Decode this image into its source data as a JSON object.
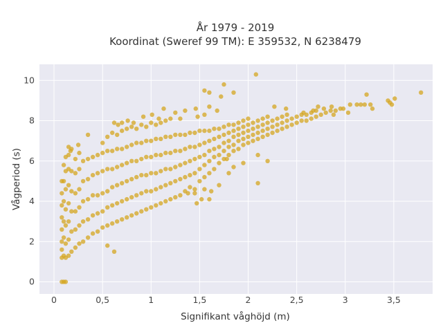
{
  "chart_data": {
    "type": "scatter",
    "title_line1": "År 1979 - 2019",
    "title_line2": "Koordinat (Sweref 99 TM): E 359532, N 6238479",
    "xlabel": "Signifikant våghöjd (m)",
    "ylabel": "Vågperiod (s)",
    "xlim": [
      -0.15,
      3.9
    ],
    "ylim": [
      -0.6,
      10.8
    ],
    "xticks": [
      0,
      0.5,
      1,
      1.5,
      2,
      2.5,
      3,
      3.5
    ],
    "xtick_labels": [
      "0",
      "0,5",
      "1",
      "1,5",
      "2",
      "2,5",
      "3",
      "3,5"
    ],
    "yticks": [
      0,
      2,
      4,
      6,
      8,
      10
    ],
    "ytick_labels": [
      "0",
      "2",
      "4",
      "6",
      "8",
      "10"
    ],
    "grid": true,
    "legend": "none",
    "colors": {
      "marker": "#d4a520",
      "plot_bg": "#e9e9f2",
      "grid": "#ffffff"
    },
    "points": [
      [
        0.08,
        0.0
      ],
      [
        0.1,
        0.0
      ],
      [
        0.12,
        0.0
      ],
      [
        0.08,
        1.2
      ],
      [
        0.08,
        1.6
      ],
      [
        0.08,
        2.0
      ],
      [
        0.08,
        2.6
      ],
      [
        0.08,
        3.2
      ],
      [
        0.08,
        3.8
      ],
      [
        0.08,
        4.4
      ],
      [
        0.08,
        5.0
      ],
      [
        0.1,
        1.3
      ],
      [
        0.1,
        2.2
      ],
      [
        0.1,
        3.0
      ],
      [
        0.1,
        4.0
      ],
      [
        0.1,
        5.0
      ],
      [
        0.1,
        5.8
      ],
      [
        0.12,
        1.2
      ],
      [
        0.12,
        1.9
      ],
      [
        0.12,
        2.8
      ],
      [
        0.12,
        3.6
      ],
      [
        0.12,
        4.6
      ],
      [
        0.12,
        5.5
      ],
      [
        0.12,
        6.2
      ],
      [
        0.15,
        1.3
      ],
      [
        0.15,
        2.1
      ],
      [
        0.15,
        3.0
      ],
      [
        0.15,
        3.9
      ],
      [
        0.15,
        4.8
      ],
      [
        0.15,
        5.6
      ],
      [
        0.15,
        6.3
      ],
      [
        0.18,
        1.5
      ],
      [
        0.18,
        2.5
      ],
      [
        0.18,
        3.5
      ],
      [
        0.18,
        4.5
      ],
      [
        0.18,
        5.5
      ],
      [
        0.18,
        6.6
      ],
      [
        0.22,
        1.7
      ],
      [
        0.22,
        2.6
      ],
      [
        0.22,
        3.5
      ],
      [
        0.22,
        4.4
      ],
      [
        0.22,
        5.4
      ],
      [
        0.22,
        6.1
      ],
      [
        0.26,
        1.9
      ],
      [
        0.26,
        2.8
      ],
      [
        0.26,
        3.7
      ],
      [
        0.26,
        4.6
      ],
      [
        0.26,
        5.6
      ],
      [
        0.26,
        6.4
      ],
      [
        0.3,
        2.0
      ],
      [
        0.3,
        3.0
      ],
      [
        0.3,
        4.0
      ],
      [
        0.3,
        5.0
      ],
      [
        0.3,
        6.0
      ],
      [
        0.35,
        2.2
      ],
      [
        0.35,
        3.1
      ],
      [
        0.35,
        4.1
      ],
      [
        0.35,
        5.1
      ],
      [
        0.35,
        6.1
      ],
      [
        0.4,
        2.4
      ],
      [
        0.4,
        3.3
      ],
      [
        0.4,
        4.3
      ],
      [
        0.4,
        5.3
      ],
      [
        0.4,
        6.2
      ],
      [
        0.45,
        2.5
      ],
      [
        0.45,
        3.4
      ],
      [
        0.45,
        4.3
      ],
      [
        0.45,
        5.4
      ],
      [
        0.45,
        6.3
      ],
      [
        0.5,
        2.7
      ],
      [
        0.5,
        3.5
      ],
      [
        0.5,
        4.4
      ],
      [
        0.5,
        5.5
      ],
      [
        0.5,
        6.4
      ],
      [
        0.5,
        6.9
      ],
      [
        0.55,
        2.8
      ],
      [
        0.55,
        3.7
      ],
      [
        0.55,
        4.5
      ],
      [
        0.55,
        5.6
      ],
      [
        0.55,
        6.5
      ],
      [
        0.55,
        7.2
      ],
      [
        0.6,
        2.9
      ],
      [
        0.6,
        3.8
      ],
      [
        0.6,
        4.7
      ],
      [
        0.6,
        5.6
      ],
      [
        0.6,
        6.5
      ],
      [
        0.6,
        7.4
      ],
      [
        0.65,
        3.0
      ],
      [
        0.65,
        3.9
      ],
      [
        0.65,
        4.8
      ],
      [
        0.65,
        5.7
      ],
      [
        0.65,
        6.6
      ],
      [
        0.65,
        7.3
      ],
      [
        0.7,
        3.1
      ],
      [
        0.7,
        4.0
      ],
      [
        0.7,
        4.9
      ],
      [
        0.7,
        5.8
      ],
      [
        0.7,
        6.6
      ],
      [
        0.7,
        7.5
      ],
      [
        0.75,
        3.2
      ],
      [
        0.75,
        4.1
      ],
      [
        0.75,
        5.0
      ],
      [
        0.75,
        5.9
      ],
      [
        0.75,
        6.7
      ],
      [
        0.75,
        7.6
      ],
      [
        0.8,
        3.3
      ],
      [
        0.8,
        4.2
      ],
      [
        0.8,
        5.1
      ],
      [
        0.8,
        6.0
      ],
      [
        0.8,
        6.8
      ],
      [
        0.8,
        7.7
      ],
      [
        0.85,
        3.4
      ],
      [
        0.85,
        4.3
      ],
      [
        0.85,
        5.2
      ],
      [
        0.85,
        6.0
      ],
      [
        0.85,
        6.9
      ],
      [
        0.85,
        7.6
      ],
      [
        0.9,
        3.5
      ],
      [
        0.9,
        4.4
      ],
      [
        0.9,
        5.3
      ],
      [
        0.9,
        6.1
      ],
      [
        0.9,
        6.9
      ],
      [
        0.9,
        7.8
      ],
      [
        0.95,
        3.6
      ],
      [
        0.95,
        4.5
      ],
      [
        0.95,
        5.3
      ],
      [
        0.95,
        6.2
      ],
      [
        0.95,
        7.0
      ],
      [
        0.95,
        7.7
      ],
      [
        1.0,
        3.7
      ],
      [
        1.0,
        4.5
      ],
      [
        1.0,
        5.4
      ],
      [
        1.0,
        6.2
      ],
      [
        1.0,
        7.0
      ],
      [
        1.0,
        7.9
      ],
      [
        1.05,
        3.8
      ],
      [
        1.05,
        4.6
      ],
      [
        1.05,
        5.4
      ],
      [
        1.05,
        6.3
      ],
      [
        1.05,
        7.1
      ],
      [
        1.05,
        7.8
      ],
      [
        1.1,
        3.9
      ],
      [
        1.1,
        4.7
      ],
      [
        1.1,
        5.5
      ],
      [
        1.1,
        6.3
      ],
      [
        1.1,
        7.1
      ],
      [
        1.1,
        7.9
      ],
      [
        1.15,
        4.0
      ],
      [
        1.15,
        4.8
      ],
      [
        1.15,
        5.6
      ],
      [
        1.15,
        6.4
      ],
      [
        1.15,
        7.2
      ],
      [
        1.15,
        8.0
      ],
      [
        1.2,
        4.1
      ],
      [
        1.2,
        4.9
      ],
      [
        1.2,
        5.6
      ],
      [
        1.2,
        6.4
      ],
      [
        1.2,
        7.2
      ],
      [
        1.2,
        8.1
      ],
      [
        1.25,
        4.2
      ],
      [
        1.25,
        5.0
      ],
      [
        1.25,
        5.7
      ],
      [
        1.25,
        6.5
      ],
      [
        1.25,
        7.3
      ],
      [
        1.3,
        4.3
      ],
      [
        1.3,
        5.1
      ],
      [
        1.3,
        5.8
      ],
      [
        1.3,
        6.5
      ],
      [
        1.3,
        7.3
      ],
      [
        1.3,
        8.1
      ],
      [
        1.35,
        4.5
      ],
      [
        1.35,
        5.2
      ],
      [
        1.35,
        5.9
      ],
      [
        1.35,
        6.6
      ],
      [
        1.35,
        7.3
      ],
      [
        1.4,
        4.7
      ],
      [
        1.4,
        5.3
      ],
      [
        1.4,
        6.0
      ],
      [
        1.4,
        6.7
      ],
      [
        1.4,
        7.4
      ],
      [
        1.45,
        4.6
      ],
      [
        1.45,
        5.4
      ],
      [
        1.45,
        6.1
      ],
      [
        1.45,
        6.7
      ],
      [
        1.45,
        7.4
      ],
      [
        1.5,
        5.0
      ],
      [
        1.5,
        5.6
      ],
      [
        1.5,
        6.2
      ],
      [
        1.5,
        6.8
      ],
      [
        1.5,
        7.5
      ],
      [
        1.55,
        5.2
      ],
      [
        1.55,
        5.8
      ],
      [
        1.55,
        6.3
      ],
      [
        1.55,
        6.9
      ],
      [
        1.55,
        7.5
      ],
      [
        1.6,
        5.4
      ],
      [
        1.6,
        6.0
      ],
      [
        1.6,
        6.5
      ],
      [
        1.6,
        7.0
      ],
      [
        1.6,
        7.5
      ],
      [
        1.65,
        5.6
      ],
      [
        1.65,
        6.2
      ],
      [
        1.65,
        6.6
      ],
      [
        1.65,
        7.1
      ],
      [
        1.65,
        7.6
      ],
      [
        1.7,
        5.9
      ],
      [
        1.7,
        6.3
      ],
      [
        1.7,
        6.7
      ],
      [
        1.7,
        7.2
      ],
      [
        1.7,
        7.6
      ],
      [
        1.75,
        6.1
      ],
      [
        1.75,
        6.5
      ],
      [
        1.75,
        6.9
      ],
      [
        1.75,
        7.3
      ],
      [
        1.75,
        7.7
      ],
      [
        1.8,
        6.3
      ],
      [
        1.8,
        6.7
      ],
      [
        1.8,
        7.0
      ],
      [
        1.8,
        7.4
      ],
      [
        1.8,
        7.8
      ],
      [
        1.85,
        6.5
      ],
      [
        1.85,
        6.8
      ],
      [
        1.85,
        7.2
      ],
      [
        1.85,
        7.5
      ],
      [
        1.85,
        7.8
      ],
      [
        1.9,
        6.6
      ],
      [
        1.9,
        7.0
      ],
      [
        1.9,
        7.3
      ],
      [
        1.9,
        7.6
      ],
      [
        1.9,
        7.9
      ],
      [
        1.95,
        6.8
      ],
      [
        1.95,
        7.1
      ],
      [
        1.95,
        7.4
      ],
      [
        1.95,
        7.7
      ],
      [
        1.95,
        8.0
      ],
      [
        2.0,
        6.9
      ],
      [
        2.0,
        7.2
      ],
      [
        2.0,
        7.5
      ],
      [
        2.0,
        7.8
      ],
      [
        2.0,
        8.1
      ],
      [
        2.05,
        7.0
      ],
      [
        2.05,
        7.3
      ],
      [
        2.05,
        7.6
      ],
      [
        2.05,
        7.9
      ],
      [
        2.1,
        7.1
      ],
      [
        2.1,
        7.4
      ],
      [
        2.1,
        7.7
      ],
      [
        2.1,
        8.0
      ],
      [
        2.15,
        7.2
      ],
      [
        2.15,
        7.5
      ],
      [
        2.15,
        7.8
      ],
      [
        2.15,
        8.1
      ],
      [
        2.2,
        7.3
      ],
      [
        2.2,
        7.6
      ],
      [
        2.2,
        7.9
      ],
      [
        2.2,
        8.2
      ],
      [
        2.25,
        7.4
      ],
      [
        2.25,
        7.7
      ],
      [
        2.25,
        8.0
      ],
      [
        2.3,
        7.5
      ],
      [
        2.3,
        7.8
      ],
      [
        2.3,
        8.1
      ],
      [
        2.35,
        7.6
      ],
      [
        2.35,
        7.9
      ],
      [
        2.35,
        8.2
      ],
      [
        2.4,
        7.7
      ],
      [
        2.4,
        8.0
      ],
      [
        2.4,
        8.3
      ],
      [
        2.45,
        7.8
      ],
      [
        2.45,
        8.1
      ],
      [
        2.5,
        7.9
      ],
      [
        2.5,
        8.2
      ],
      [
        2.55,
        8.0
      ],
      [
        2.55,
        8.3
      ],
      [
        2.6,
        8.0
      ],
      [
        2.6,
        8.3
      ],
      [
        2.65,
        8.1
      ],
      [
        2.65,
        8.4
      ],
      [
        2.7,
        8.2
      ],
      [
        2.7,
        8.5
      ],
      [
        2.75,
        8.3
      ],
      [
        2.8,
        8.4
      ],
      [
        2.85,
        8.5
      ],
      [
        2.9,
        8.5
      ],
      [
        2.95,
        8.6
      ],
      [
        2.27,
        8.7
      ],
      [
        2.39,
        8.6
      ],
      [
        2.57,
        8.4
      ],
      [
        2.67,
        8.5
      ],
      [
        2.72,
        8.7
      ],
      [
        2.78,
        8.6
      ],
      [
        2.86,
        8.7
      ],
      [
        2.88,
        8.3
      ],
      [
        2.98,
        8.6
      ],
      [
        3.03,
        8.4
      ],
      [
        3.05,
        8.8
      ],
      [
        3.12,
        8.8
      ],
      [
        3.16,
        8.8
      ],
      [
        3.2,
        8.8
      ],
      [
        3.26,
        8.8
      ],
      [
        3.28,
        8.6
      ],
      [
        3.22,
        9.3
      ],
      [
        3.44,
        9.0
      ],
      [
        3.46,
        8.9
      ],
      [
        3.48,
        8.8
      ],
      [
        3.51,
        9.1
      ],
      [
        3.78,
        9.4
      ],
      [
        2.08,
        10.3
      ],
      [
        1.55,
        9.5
      ],
      [
        1.6,
        9.4
      ],
      [
        1.75,
        9.8
      ],
      [
        1.85,
        9.4
      ],
      [
        1.72,
        9.2
      ],
      [
        0.62,
        7.9
      ],
      [
        0.66,
        7.8
      ],
      [
        0.7,
        7.9
      ],
      [
        0.76,
        8.0
      ],
      [
        0.82,
        7.9
      ],
      [
        0.92,
        8.2
      ],
      [
        1.01,
        8.3
      ],
      [
        1.08,
        8.1
      ],
      [
        1.13,
        8.6
      ],
      [
        1.25,
        8.4
      ],
      [
        1.35,
        8.5
      ],
      [
        1.46,
        8.6
      ],
      [
        1.48,
        8.2
      ],
      [
        1.55,
        8.3
      ],
      [
        1.6,
        8.7
      ],
      [
        1.68,
        8.5
      ],
      [
        0.35,
        7.3
      ],
      [
        0.25,
        6.8
      ],
      [
        0.15,
        6.7
      ],
      [
        0.17,
        6.5
      ],
      [
        1.45,
        4.4
      ],
      [
        1.52,
        4.1
      ],
      [
        1.47,
        3.9
      ],
      [
        1.6,
        4.1
      ],
      [
        1.55,
        4.6
      ],
      [
        1.38,
        4.4
      ],
      [
        1.62,
        4.5
      ],
      [
        1.7,
        4.8
      ],
      [
        2.1,
        4.9
      ],
      [
        2.2,
        6.0
      ],
      [
        2.1,
        6.3
      ],
      [
        1.95,
        5.9
      ],
      [
        1.85,
        5.7
      ],
      [
        1.8,
        5.4
      ],
      [
        1.78,
        6.1
      ],
      [
        0.62,
        1.5
      ],
      [
        0.55,
        1.8
      ]
    ]
  }
}
